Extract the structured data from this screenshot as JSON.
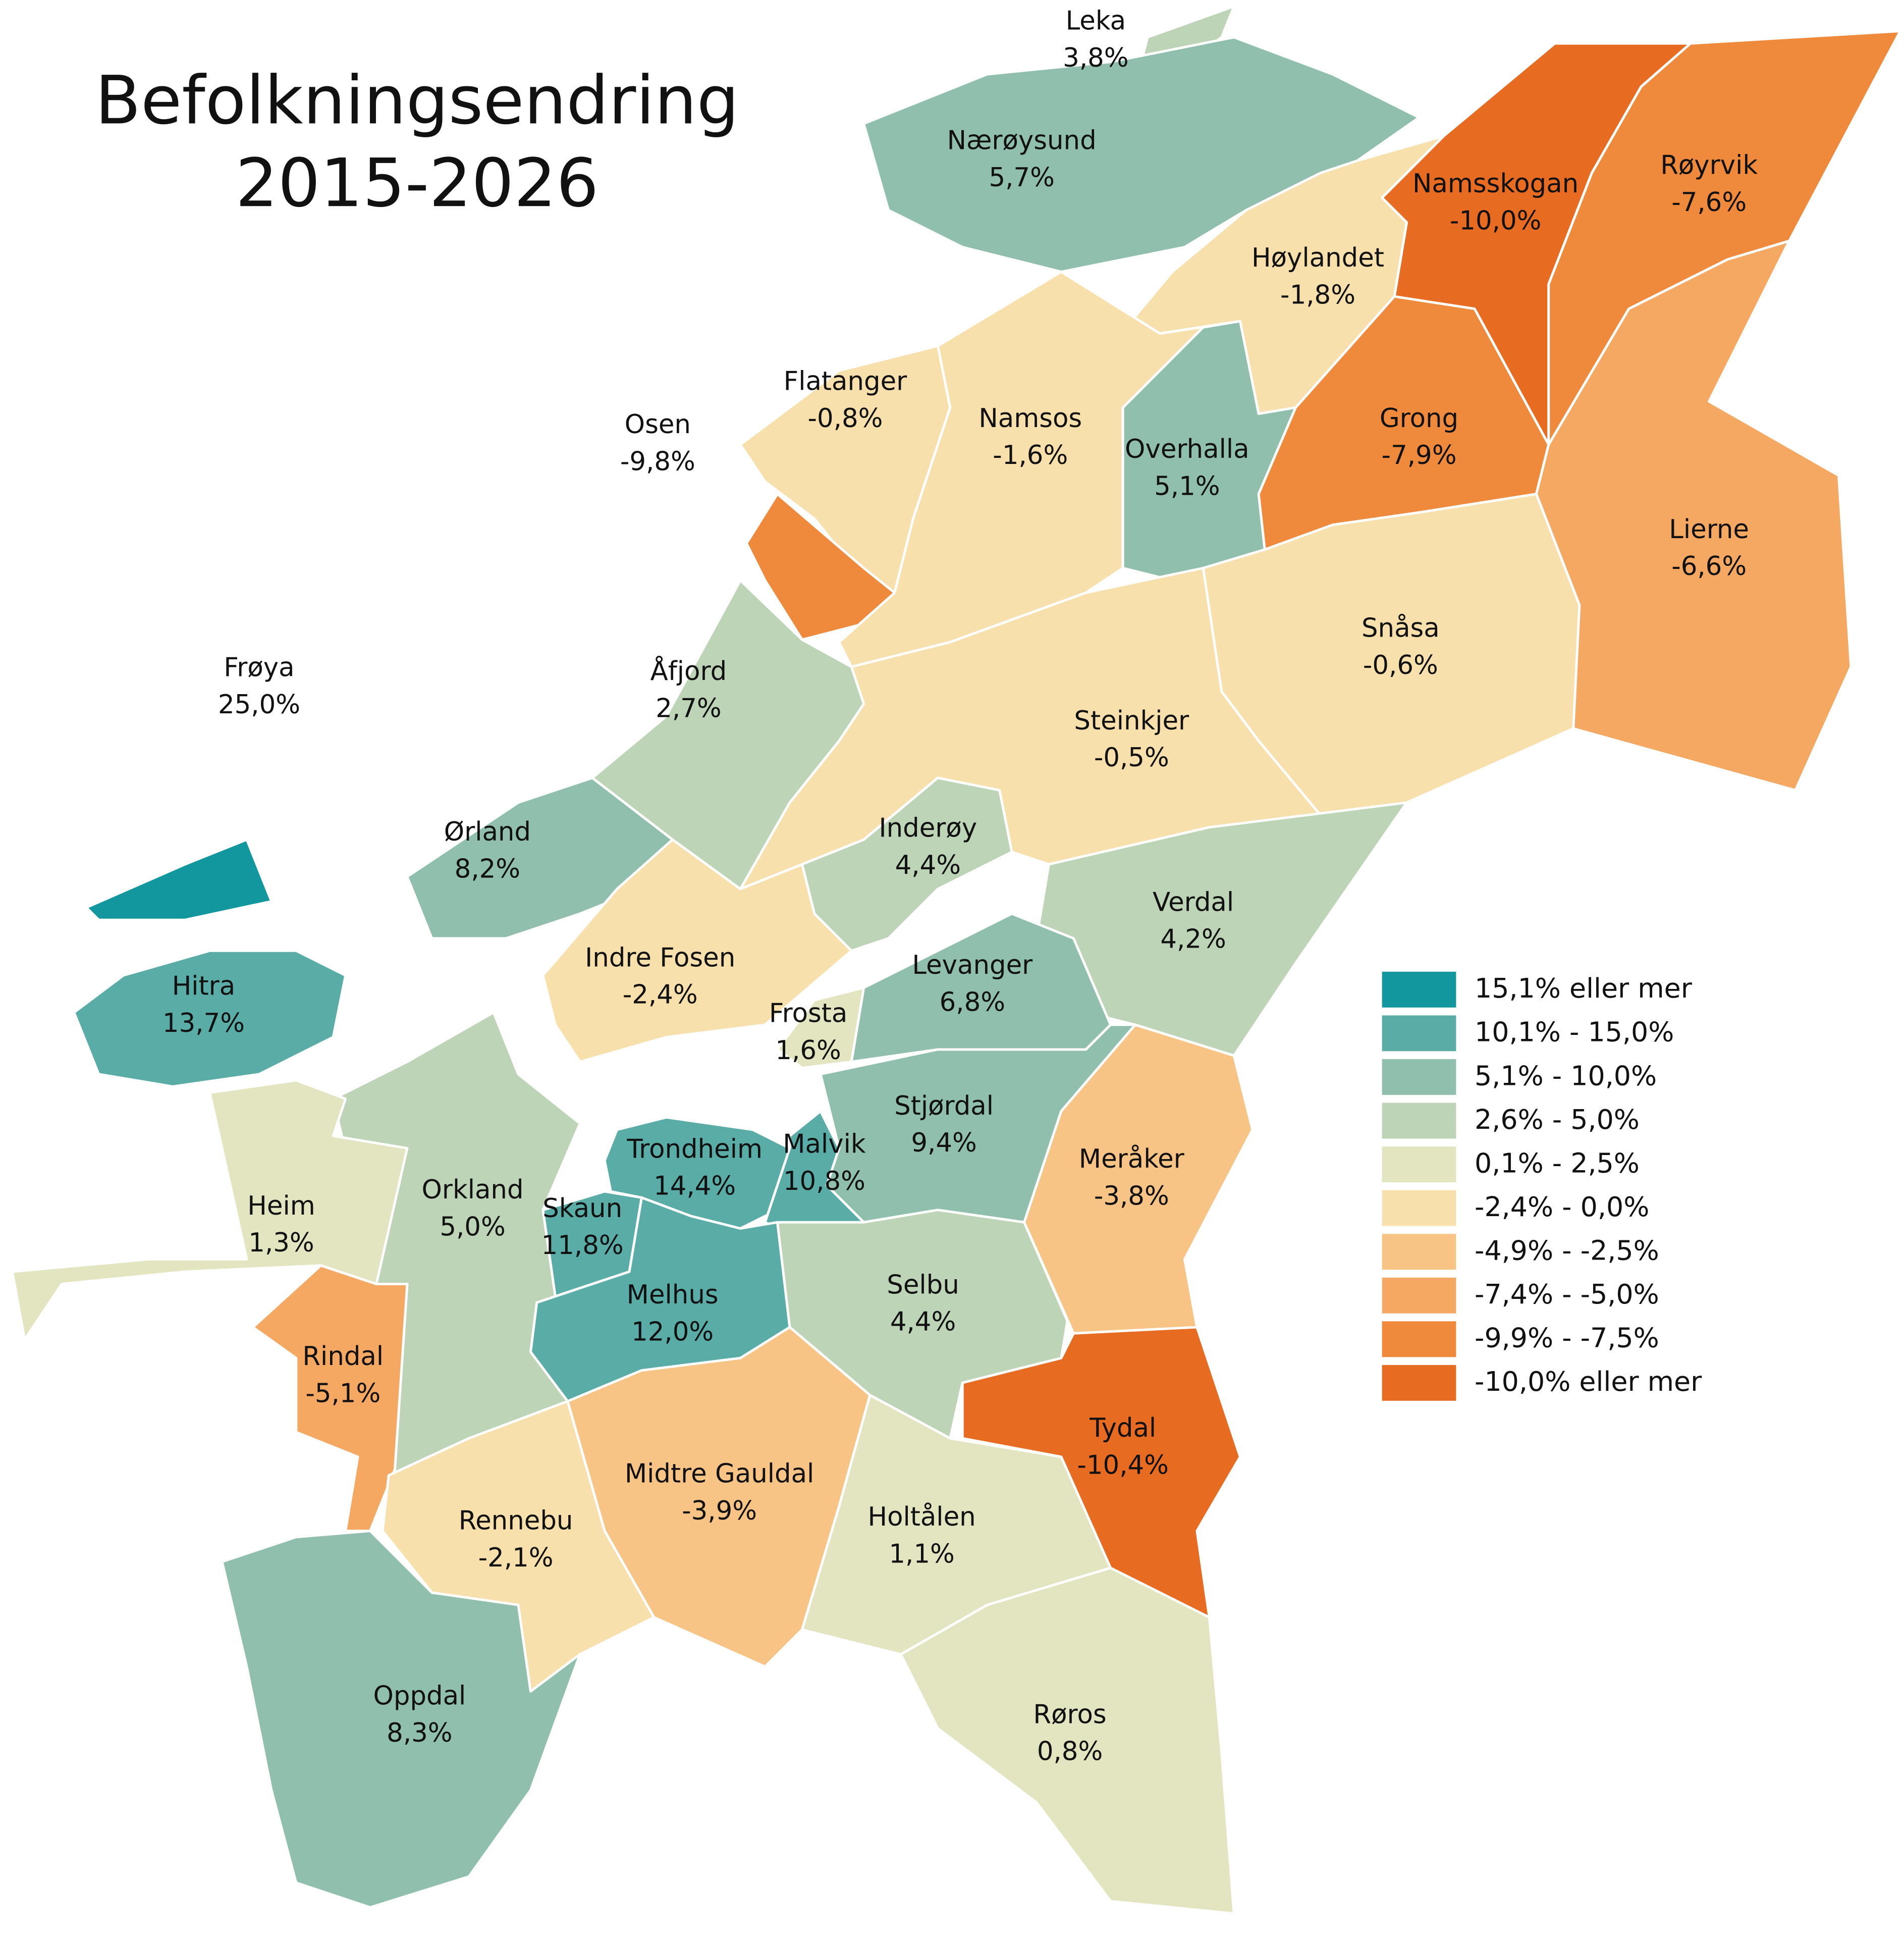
{
  "title": [
    "Befolkningsendring",
    "2015-2026"
  ],
  "legend": [
    {
      "label": "15,1% eller mer",
      "min": 15.1,
      "color": "#12979f"
    },
    {
      "label": "10,1% - 15,0%",
      "min": 10.1,
      "max": 15.0,
      "color": "#5aada7"
    },
    {
      "label": "5,1% - 10,0%",
      "min": 5.1,
      "max": 10.0,
      "color": "#90bfae"
    },
    {
      "label": "2,6% - 5,0%",
      "min": 2.6,
      "max": 5.0,
      "color": "#bdd4b6"
    },
    {
      "label": "0,1% - 2,5%",
      "min": 0.1,
      "max": 2.5,
      "color": "#e3e5c1"
    },
    {
      "label": "-2,4% - 0,0%",
      "min": -2.4,
      "max": 0.0,
      "color": "#f8e0ac"
    },
    {
      "label": "-4,9% - -2,5%",
      "min": -4.9,
      "max": -2.5,
      "color": "#f8c486"
    },
    {
      "label": "-7,4% - -5,0%",
      "min": -7.4,
      "max": -5.0,
      "color": "#f5a862"
    },
    {
      "label": "-9,9% - -7,5%",
      "min": -9.9,
      "max": -7.5,
      "color": "#ef8a3c"
    },
    {
      "label": "-10,0% eller mer",
      "max": -10.0,
      "color": "#e86b22"
    }
  ],
  "regions": [
    {
      "name": "Leka",
      "value": 3.8,
      "value_label": "3,8%"
    },
    {
      "name": "Nærøysund",
      "value": 5.7,
      "value_label": "5,7%"
    },
    {
      "name": "Namsskogan",
      "value": -10.0,
      "value_label": "-10,0%"
    },
    {
      "name": "Røyrvik",
      "value": -7.6,
      "value_label": "-7,6%"
    },
    {
      "name": "Høylandet",
      "value": -1.8,
      "value_label": "-1,8%"
    },
    {
      "name": "Flatanger",
      "value": -0.8,
      "value_label": "-0,8%"
    },
    {
      "name": "Osen",
      "value": -9.8,
      "value_label": "-9,8%"
    },
    {
      "name": "Namsos",
      "value": -1.6,
      "value_label": "-1,6%"
    },
    {
      "name": "Overhalla",
      "value": 5.1,
      "value_label": "5,1%"
    },
    {
      "name": "Grong",
      "value": -7.9,
      "value_label": "-7,9%"
    },
    {
      "name": "Lierne",
      "value": -6.6,
      "value_label": "-6,6%"
    },
    {
      "name": "Snåsa",
      "value": -0.6,
      "value_label": "-0,6%"
    },
    {
      "name": "Steinkjer",
      "value": -0.5,
      "value_label": "-0,5%"
    },
    {
      "name": "Åfjord",
      "value": 2.7,
      "value_label": "2,7%"
    },
    {
      "name": "Inderøy",
      "value": 4.4,
      "value_label": "4,4%"
    },
    {
      "name": "Verdal",
      "value": 4.2,
      "value_label": "4,2%"
    },
    {
      "name": "Ørland",
      "value": 8.2,
      "value_label": "8,2%"
    },
    {
      "name": "Indre Fosen",
      "value": -2.4,
      "value_label": "-2,4%"
    },
    {
      "name": "Hitra",
      "value": 13.7,
      "value_label": "13,7%"
    },
    {
      "name": "Frøya",
      "value": 25.0,
      "value_label": "25,0%"
    },
    {
      "name": "Levanger",
      "value": 6.8,
      "value_label": "6,8%"
    },
    {
      "name": "Frosta",
      "value": 1.6,
      "value_label": "1,6%"
    },
    {
      "name": "Stjørdal",
      "value": 9.4,
      "value_label": "9,4%"
    },
    {
      "name": "Meråker",
      "value": -3.8,
      "value_label": "-3,8%"
    },
    {
      "name": "Trondheim",
      "value": 14.4,
      "value_label": "14,4%"
    },
    {
      "name": "Malvik",
      "value": 10.8,
      "value_label": "10,8%"
    },
    {
      "name": "Skaun",
      "value": 11.8,
      "value_label": "11,8%"
    },
    {
      "name": "Melhus",
      "value": 12.0,
      "value_label": "12,0%"
    },
    {
      "name": "Selbu",
      "value": 4.4,
      "value_label": "4,4%"
    },
    {
      "name": "Tydal",
      "value": -10.4,
      "value_label": "-10,4%"
    },
    {
      "name": "Orkland",
      "value": 5.0,
      "value_label": "5,0%"
    },
    {
      "name": "Heim",
      "value": 1.3,
      "value_label": "1,3%"
    },
    {
      "name": "Rindal",
      "value": -5.1,
      "value_label": "-5,1%"
    },
    {
      "name": "Midtre Gauldal",
      "value": -3.9,
      "value_label": "-3,9%"
    },
    {
      "name": "Rennebu",
      "value": -2.1,
      "value_label": "-2,1%"
    },
    {
      "name": "Holtålen",
      "value": 1.1,
      "value_label": "1,1%"
    },
    {
      "name": "Oppdal",
      "value": 8.3,
      "value_label": "8,3%"
    },
    {
      "name": "Røros",
      "value": 0.8,
      "value_label": "0,8%"
    }
  ]
}
